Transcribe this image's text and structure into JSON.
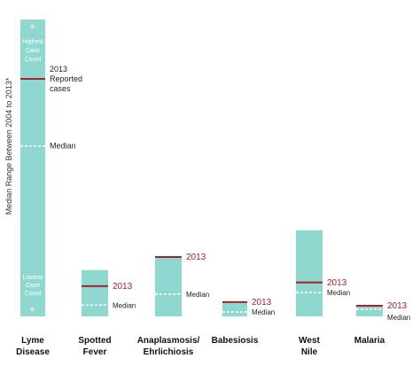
{
  "chart_data": {
    "type": "bar",
    "ylabel": "Median Range Between 2004 to 2013*",
    "top_label": [
      "Highest",
      "Case",
      "Count"
    ],
    "bottom_label": [
      "Lowest",
      "Case",
      "Count"
    ],
    "legend_2013": [
      "2013",
      "Reported",
      "cases"
    ],
    "legend_median": "Median",
    "label_2013": "2013",
    "colors": {
      "bar": "#8fd8cf",
      "line2013": "#a3232f",
      "median": "#ffffff",
      "label2013": "#a3232f"
    },
    "categories": [
      {
        "name": [
          "Lyme",
          "Disease"
        ]
      },
      {
        "name": [
          "Spotted",
          "Fever"
        ]
      },
      {
        "name": [
          "Anaplasmosis/",
          "Ehrlichiosis"
        ]
      },
      {
        "name": [
          "Babesiosis"
        ]
      },
      {
        "name": [
          "West",
          "Nile"
        ]
      },
      {
        "name": [
          "Malaria"
        ]
      }
    ],
    "series": [
      {
        "high": 1.0,
        "low": 0.0,
        "y2013": 0.8,
        "median": 0.574
      },
      {
        "high": 0.156,
        "low": 0.0,
        "y2013": 0.102,
        "median": 0.038
      },
      {
        "high": 0.2,
        "low": 0.0,
        "y2013": 0.2,
        "median": 0.075
      },
      {
        "high": 0.051,
        "low": 0.0,
        "y2013": 0.048,
        "median": 0.015
      },
      {
        "high": 0.29,
        "low": 0.0,
        "y2013": 0.114,
        "median": 0.08
      },
      {
        "high": 0.036,
        "low": 0.0,
        "y2013": 0.036,
        "median": 0.024
      }
    ]
  }
}
